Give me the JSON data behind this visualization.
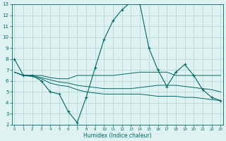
{
  "xlabel": "Humidex (Indice chaleur)",
  "x": [
    0,
    1,
    2,
    3,
    4,
    5,
    6,
    7,
    8,
    9,
    10,
    11,
    12,
    13,
    14,
    15,
    16,
    17,
    18,
    19,
    20,
    21,
    22,
    23
  ],
  "line1": [
    8.0,
    6.5,
    6.5,
    6.0,
    5.0,
    4.8,
    3.2,
    2.2,
    4.5,
    7.2,
    9.8,
    11.5,
    12.5,
    13.2,
    13.0,
    9.0,
    7.0,
    5.5,
    6.8,
    7.5,
    6.5,
    5.2,
    4.5,
    4.2
  ],
  "line2": [
    6.8,
    6.5,
    6.5,
    6.5,
    6.3,
    6.2,
    6.2,
    6.5,
    6.5,
    6.5,
    6.5,
    6.5,
    6.6,
    6.7,
    6.8,
    6.8,
    6.8,
    6.8,
    6.5,
    6.5,
    6.5,
    6.5,
    6.5,
    6.5
  ],
  "line3": [
    6.8,
    6.5,
    6.5,
    6.3,
    6.1,
    5.9,
    5.8,
    5.6,
    5.5,
    5.4,
    5.3,
    5.3,
    5.3,
    5.3,
    5.4,
    5.5,
    5.6,
    5.6,
    5.6,
    5.5,
    5.4,
    5.3,
    5.2,
    5.0
  ],
  "line4": [
    6.8,
    6.5,
    6.4,
    6.2,
    5.8,
    5.6,
    5.5,
    5.2,
    5.0,
    4.9,
    4.8,
    4.8,
    4.8,
    4.8,
    4.8,
    4.7,
    4.6,
    4.6,
    4.6,
    4.5,
    4.5,
    4.4,
    4.3,
    4.2
  ],
  "color": "#006666",
  "bg_color": "#dff2f2",
  "grid_color": "#aed4d4",
  "ylim": [
    2,
    13
  ],
  "xlim": [
    0,
    23
  ],
  "yticks": [
    2,
    3,
    4,
    5,
    6,
    7,
    8,
    9,
    10,
    11,
    12,
    13
  ],
  "xticks": [
    0,
    1,
    2,
    3,
    4,
    5,
    6,
    7,
    8,
    9,
    10,
    11,
    12,
    13,
    14,
    15,
    16,
    17,
    18,
    19,
    20,
    21,
    22,
    23
  ]
}
